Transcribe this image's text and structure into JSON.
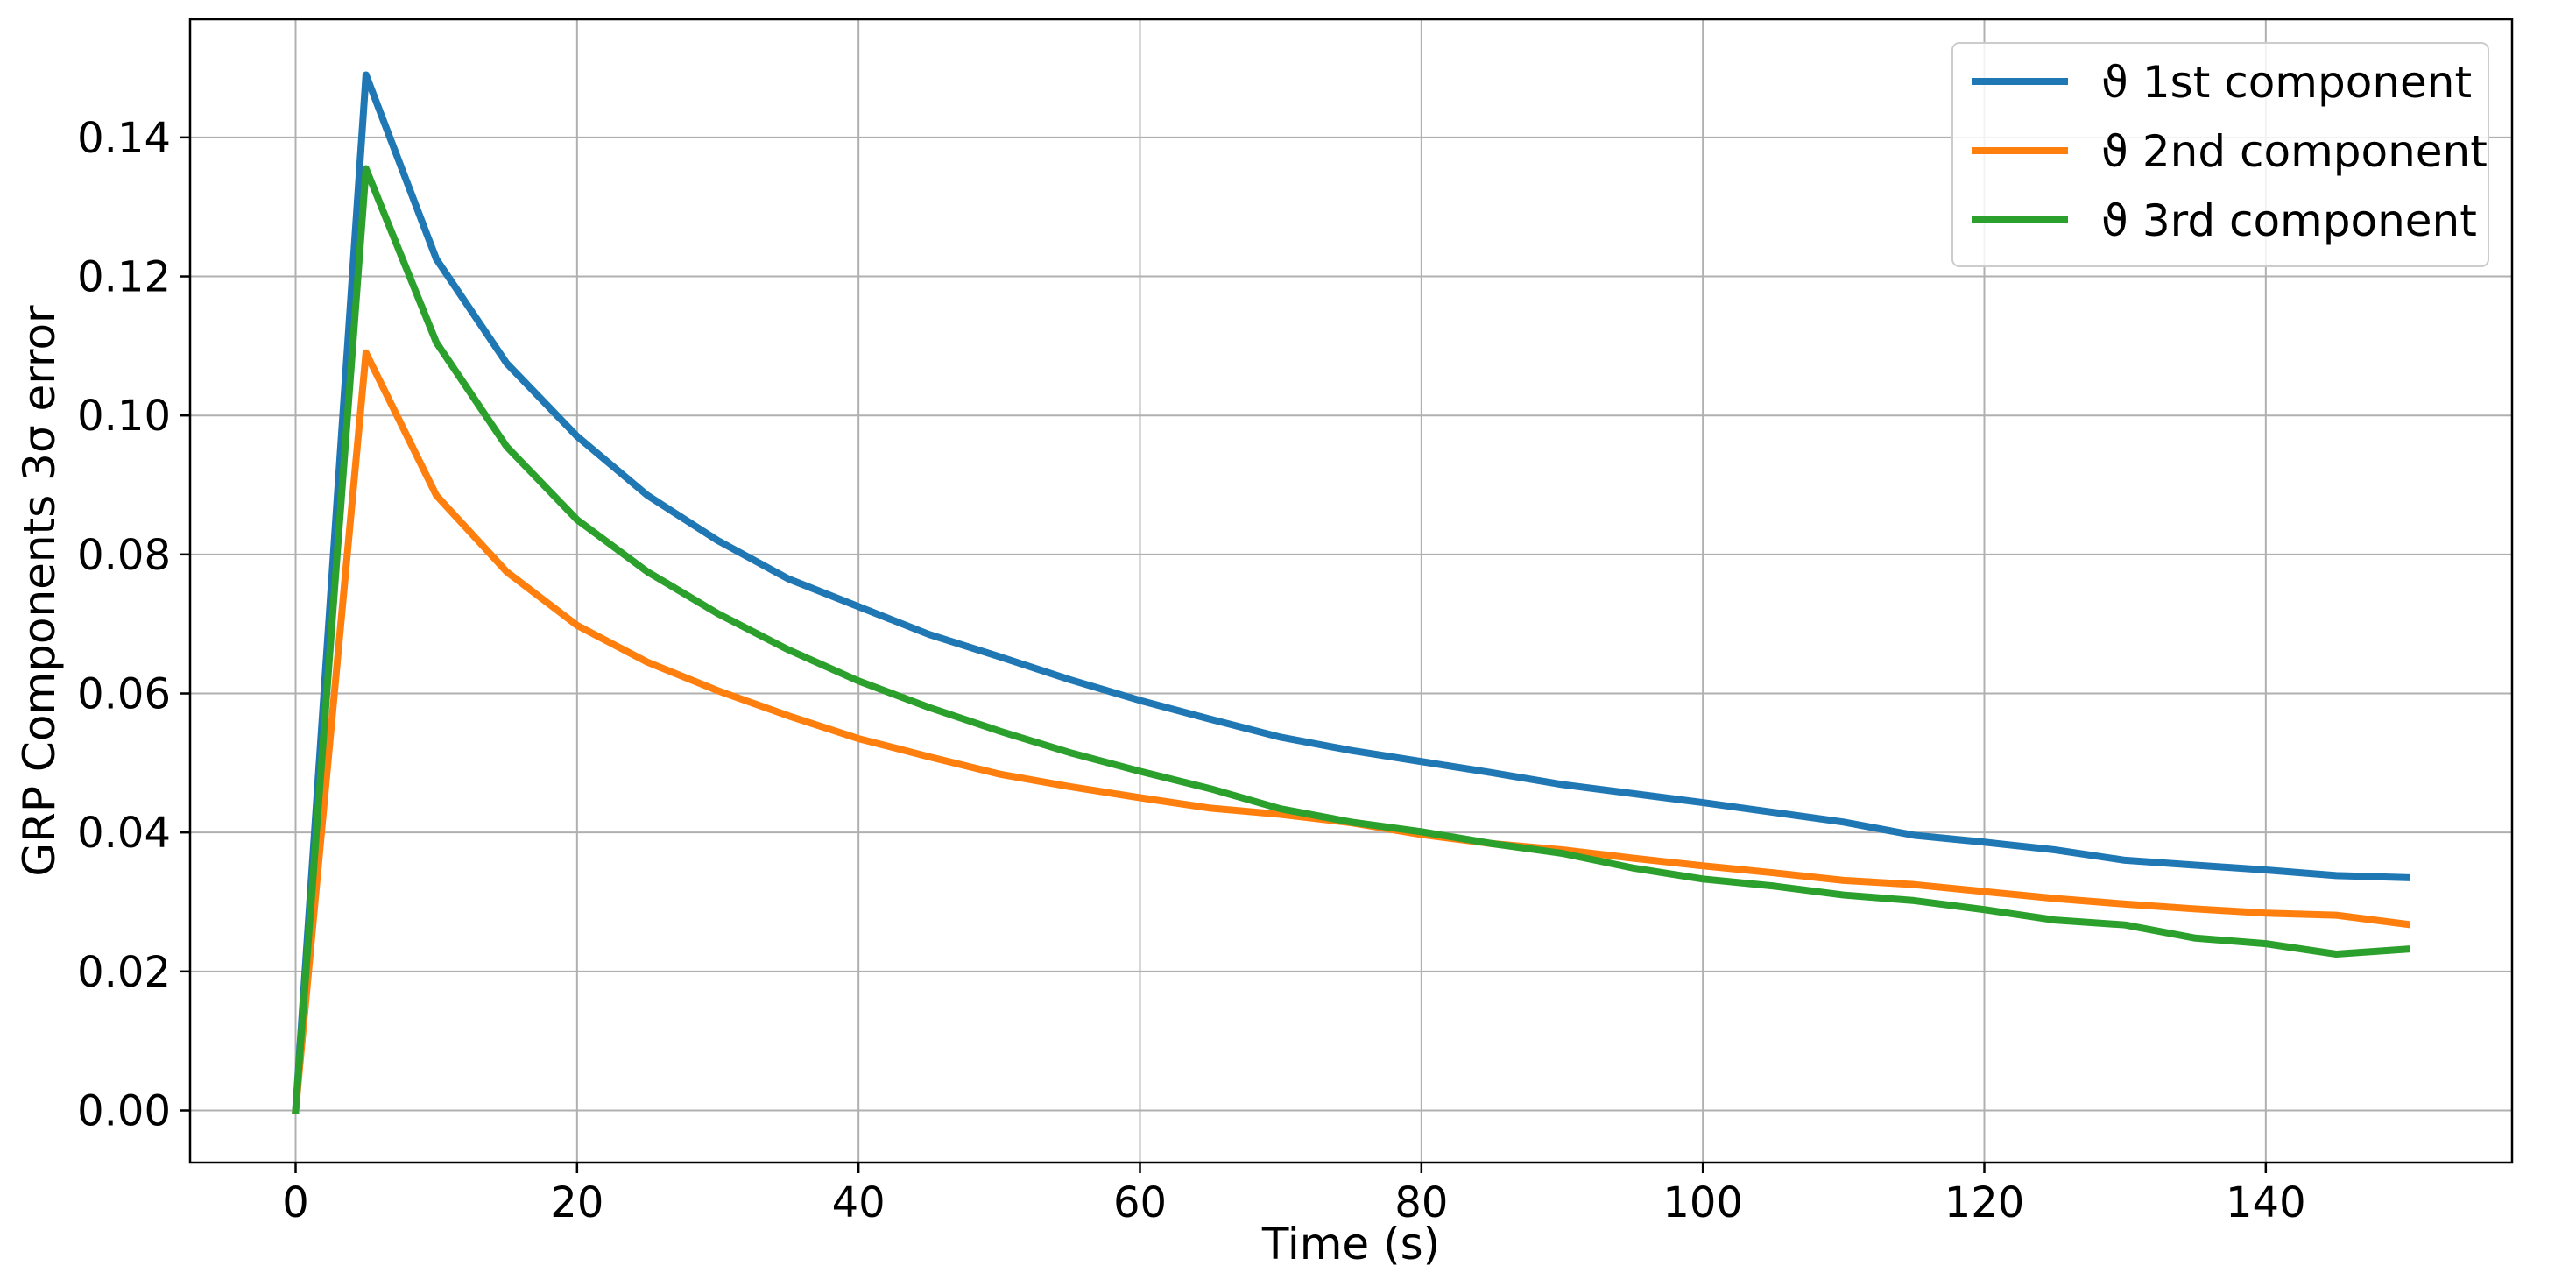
{
  "chart_data": {
    "type": "line",
    "title": "",
    "xlabel": "Time (s)",
    "ylabel": "GRP Components 3σ error",
    "xlim": [
      -7.5,
      157.5
    ],
    "ylim": [
      -0.0075,
      0.157
    ],
    "xticks": [
      0,
      20,
      40,
      60,
      80,
      100,
      120,
      140
    ],
    "yticks": [
      0.0,
      0.02,
      0.04,
      0.06,
      0.08,
      0.1,
      0.12,
      0.14
    ],
    "xtick_labels": [
      "0",
      "20",
      "40",
      "60",
      "80",
      "100",
      "120",
      "140"
    ],
    "ytick_labels": [
      "0.00",
      "0.02",
      "0.04",
      "0.06",
      "0.08",
      "0.10",
      "0.12",
      "0.14"
    ],
    "grid": true,
    "legend_position": "top-right",
    "x": [
      0,
      5,
      10,
      15,
      20,
      25,
      30,
      35,
      40,
      45,
      50,
      55,
      60,
      65,
      70,
      75,
      80,
      85,
      90,
      95,
      100,
      105,
      110,
      115,
      120,
      125,
      130,
      135,
      140,
      145,
      150
    ],
    "series": [
      {
        "name": "ϑ 1st component",
        "color": "#1f77b4",
        "values": [
          0.0,
          0.149,
          0.1225,
          0.1075,
          0.097,
          0.0885,
          0.082,
          0.0765,
          0.0725,
          0.0685,
          0.0653,
          0.062,
          0.059,
          0.0563,
          0.0537,
          0.0518,
          0.0502,
          0.0486,
          0.0469,
          0.0456,
          0.0443,
          0.0429,
          0.0415,
          0.0396,
          0.0386,
          0.0375,
          0.036,
          0.0353,
          0.0346,
          0.0338,
          0.0335
        ]
      },
      {
        "name": "ϑ 2nd component",
        "color": "#ff7f0e",
        "values": [
          0.0,
          0.109,
          0.0885,
          0.0775,
          0.0698,
          0.0645,
          0.0604,
          0.0568,
          0.0535,
          0.0509,
          0.0484,
          0.0466,
          0.045,
          0.0435,
          0.0426,
          0.0414,
          0.0397,
          0.0384,
          0.0375,
          0.0363,
          0.0352,
          0.0342,
          0.0331,
          0.0325,
          0.0315,
          0.0305,
          0.0297,
          0.029,
          0.0284,
          0.0281,
          0.0268
        ]
      },
      {
        "name": "ϑ 3rd component",
        "color": "#2ca02c",
        "values": [
          0.0,
          0.1355,
          0.1105,
          0.0955,
          0.085,
          0.0775,
          0.0715,
          0.0663,
          0.0618,
          0.058,
          0.0546,
          0.0515,
          0.0488,
          0.0463,
          0.0434,
          0.0415,
          0.0401,
          0.0384,
          0.037,
          0.0349,
          0.0333,
          0.0323,
          0.031,
          0.0302,
          0.0289,
          0.0274,
          0.0267,
          0.0248,
          0.024,
          0.0225,
          0.0232
        ]
      }
    ]
  }
}
